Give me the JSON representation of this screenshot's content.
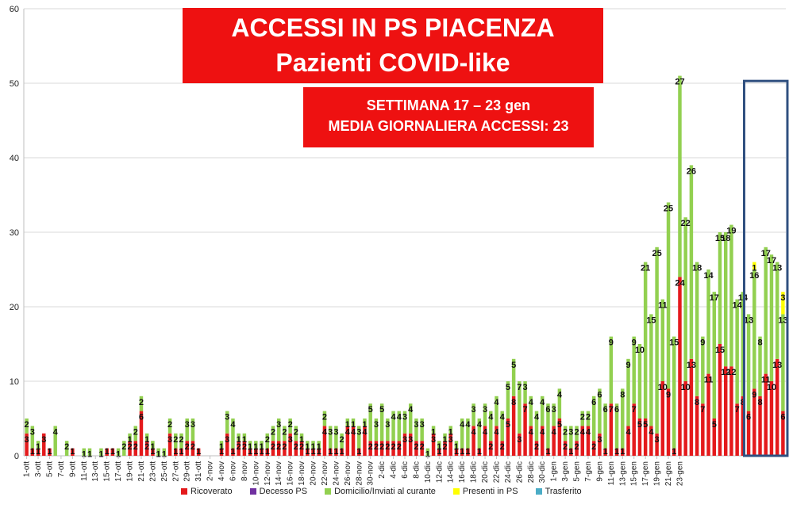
{
  "title": {
    "line1": "ACCESSI IN PS PIACENZA",
    "line2": "Pazienti COVID-like",
    "sub1": "SETTIMANA  17 – 23 gen",
    "sub2": "MEDIA GIORNALIERA ACCESSI: 23"
  },
  "colors": {
    "ricoverato": "#e41a1c",
    "decesso": "#7030a0",
    "domicilio": "#92d050",
    "presenti": "#ffff00",
    "trasferito": "#4bacc6",
    "highlight": "#2f4f7f"
  },
  "legend": [
    {
      "label": "Ricoverato",
      "color": "#e41a1c"
    },
    {
      "label": "Decesso PS",
      "color": "#7030a0"
    },
    {
      "label": "Domicilio/Inviati al curante",
      "color": "#92d050"
    },
    {
      "label": "Presenti in PS",
      "color": "#ffff00"
    },
    {
      "label": "Trasferito",
      "color": "#4bacc6"
    }
  ],
  "chart_data": {
    "type": "bar",
    "stacked": true,
    "ylim": [
      0,
      60
    ],
    "yticks": [
      0,
      10,
      20,
      30,
      40,
      50,
      60
    ],
    "grid": true,
    "legend_position": "bottom",
    "x_tick_labels": [
      "1-ott",
      "3-ott",
      "5-ott",
      "7-ott",
      "9-ott",
      "11-ott",
      "13-ott",
      "15-ott",
      "17-ott",
      "19-ott",
      "21-ott",
      "23-ott",
      "25-ott",
      "27-ott",
      "29-ott",
      "31-ott",
      "2-nov",
      "4-nov",
      "6-nov",
      "8-nov",
      "10-nov",
      "12-nov",
      "14-nov",
      "16-nov",
      "18-nov",
      "20-nov",
      "22-nov",
      "24-nov",
      "26-nov",
      "28-nov",
      "30-nov",
      "2-dic",
      "4-dic",
      "6-dic",
      "8-dic",
      "10-dic",
      "12-dic",
      "14-dic",
      "16-dic",
      "18-dic",
      "20-dic",
      "22-dic",
      "24-dic",
      "26-dic",
      "28-dic",
      "30-dic",
      "1-gen",
      "3-gen",
      "5-gen",
      "7-gen",
      "9-gen",
      "11-gen",
      "13-gen",
      "15-gen",
      "17-gen",
      "19-gen",
      "21-gen",
      "23-gen"
    ],
    "series": [
      {
        "name": "Ricoverato",
        "values": [
          3,
          1,
          1,
          3,
          1,
          0,
          0,
          0,
          1,
          0,
          0,
          0,
          0,
          0,
          1,
          1,
          0,
          0,
          2,
          2,
          6,
          2,
          1,
          0,
          0,
          3,
          1,
          1,
          2,
          2,
          1,
          0,
          0,
          0,
          1,
          3,
          1,
          2,
          2,
          1,
          1,
          1,
          1,
          2,
          2,
          2,
          3,
          2,
          2,
          1,
          1,
          1,
          4,
          1,
          1,
          1,
          4,
          4,
          1,
          4,
          2,
          2,
          2,
          2,
          2,
          2,
          3,
          3,
          2,
          2,
          0,
          3,
          1,
          2,
          3,
          1,
          1,
          1,
          4,
          1,
          4,
          2,
          4,
          2,
          5,
          8,
          3,
          7,
          4,
          2,
          4,
          1,
          4,
          5,
          2,
          1,
          2,
          4,
          4,
          2,
          3,
          1,
          7,
          1,
          1,
          4,
          7,
          5,
          5,
          4,
          3,
          10,
          9,
          1,
          24,
          10,
          13,
          8,
          7,
          11,
          5,
          15,
          12,
          12,
          7,
          8,
          6,
          9,
          8,
          11,
          10,
          13,
          6
        ]
      },
      {
        "name": "Decesso PS",
        "values": [
          0,
          0,
          0,
          0,
          0,
          0,
          0,
          0,
          0,
          0,
          0,
          0,
          0,
          0,
          0,
          0,
          0,
          0,
          0,
          0,
          0,
          0,
          0,
          0,
          0,
          0,
          0,
          0,
          0,
          0,
          0,
          0,
          0,
          0,
          0,
          0,
          0,
          0,
          0,
          0,
          0,
          0,
          0,
          0,
          0,
          0,
          0,
          0,
          0,
          0,
          0,
          0,
          0,
          0,
          0,
          0,
          0,
          0,
          0,
          0,
          0,
          0,
          0,
          0,
          0,
          0,
          0,
          0,
          0,
          0,
          0,
          0,
          0,
          0,
          0,
          0,
          0,
          0,
          0,
          0,
          0,
          0,
          0,
          0,
          0,
          0,
          0,
          0,
          0,
          0,
          0,
          0,
          0,
          0,
          0,
          0,
          0,
          0,
          0,
          0,
          0,
          0,
          0,
          0,
          0,
          0,
          0,
          0,
          0,
          0,
          0,
          0,
          0,
          0,
          0,
          0,
          0,
          0,
          0,
          0,
          0,
          0,
          0,
          0,
          0,
          0,
          0,
          0,
          0,
          0,
          0,
          0,
          0
        ]
      },
      {
        "name": "Domicilio/Inviati al curante",
        "values": [
          2,
          3,
          1,
          0,
          0,
          4,
          0,
          2,
          0,
          0,
          1,
          1,
          0,
          1,
          0,
          0,
          1,
          2,
          1,
          2,
          2,
          1,
          1,
          1,
          1,
          2,
          2,
          2,
          3,
          3,
          0,
          0,
          0,
          0,
          1,
          3,
          4,
          1,
          1,
          1,
          1,
          1,
          2,
          2,
          3,
          2,
          2,
          2,
          1,
          1,
          1,
          1,
          2,
          3,
          3,
          2,
          1,
          1,
          3,
          1,
          5,
          3,
          5,
          3,
          4,
          4,
          3,
          4,
          3,
          3,
          1,
          1,
          1,
          1,
          1,
          1,
          4,
          4,
          3,
          4,
          3,
          4,
          4,
          4,
          5,
          5,
          7,
          3,
          4,
          4,
          4,
          6,
          3,
          4,
          2,
          3,
          2,
          2,
          2,
          6,
          6,
          6,
          9,
          6,
          8,
          9,
          9,
          10,
          21,
          15,
          25,
          11,
          25,
          15,
          27,
          22,
          26,
          18,
          9,
          14,
          17,
          15,
          18,
          19,
          14,
          14,
          13,
          16,
          8,
          17,
          17,
          13,
          13
        ]
      },
      {
        "name": "Presenti in PS",
        "values": [
          0,
          0,
          0,
          0,
          0,
          0,
          0,
          0,
          0,
          0,
          0,
          0,
          0,
          0,
          0,
          0,
          0,
          0,
          0,
          0,
          0,
          0,
          0,
          0,
          0,
          0,
          0,
          0,
          0,
          0,
          0,
          0,
          0,
          0,
          0,
          0,
          0,
          0,
          0,
          0,
          0,
          0,
          0,
          0,
          0,
          0,
          0,
          0,
          0,
          0,
          0,
          0,
          0,
          0,
          0,
          0,
          0,
          0,
          0,
          0,
          0,
          0,
          0,
          0,
          0,
          0,
          0,
          0,
          0,
          0,
          0,
          0,
          0,
          0,
          0,
          0,
          0,
          0,
          0,
          0,
          0,
          0,
          0,
          0,
          0,
          0,
          0,
          0,
          0,
          0,
          0,
          0,
          0,
          0,
          0,
          0,
          0,
          0,
          0,
          0,
          0,
          0,
          0,
          0,
          0,
          0,
          0,
          0,
          0,
          0,
          0,
          0,
          0,
          0,
          0,
          0,
          0,
          0,
          0,
          0,
          0,
          0,
          0,
          0,
          0,
          0,
          0,
          1,
          0,
          0,
          0,
          0,
          3
        ]
      },
      {
        "name": "Trasferito",
        "values": [
          0,
          0,
          0,
          0,
          0,
          0,
          0,
          0,
          0,
          0,
          0,
          0,
          0,
          0,
          0,
          0,
          0,
          0,
          0,
          0,
          0,
          0,
          0,
          0,
          0,
          0,
          0,
          0,
          0,
          0,
          0,
          0,
          0,
          0,
          0,
          0,
          0,
          0,
          0,
          0,
          0,
          0,
          0,
          0,
          0,
          0,
          0,
          0,
          0,
          0,
          0,
          0,
          0,
          0,
          0,
          0,
          0,
          0,
          0,
          0,
          0,
          0,
          0,
          0,
          0,
          0,
          0,
          0,
          0,
          0,
          0,
          0,
          0,
          0,
          0,
          0,
          0,
          0,
          0,
          0,
          0,
          0,
          0,
          0,
          0,
          0,
          0,
          0,
          0,
          0,
          0,
          0,
          0,
          0,
          0,
          0,
          0,
          0,
          0,
          0,
          0,
          0,
          0,
          0,
          0,
          0,
          0,
          0,
          0,
          0,
          0,
          0,
          0,
          0,
          0,
          0,
          0,
          0,
          0,
          0,
          0,
          0,
          0,
          0,
          0,
          0,
          0,
          0,
          0,
          0,
          0,
          0,
          0
        ]
      }
    ],
    "highlight_range": [
      "17-gen",
      "23-gen"
    ]
  }
}
